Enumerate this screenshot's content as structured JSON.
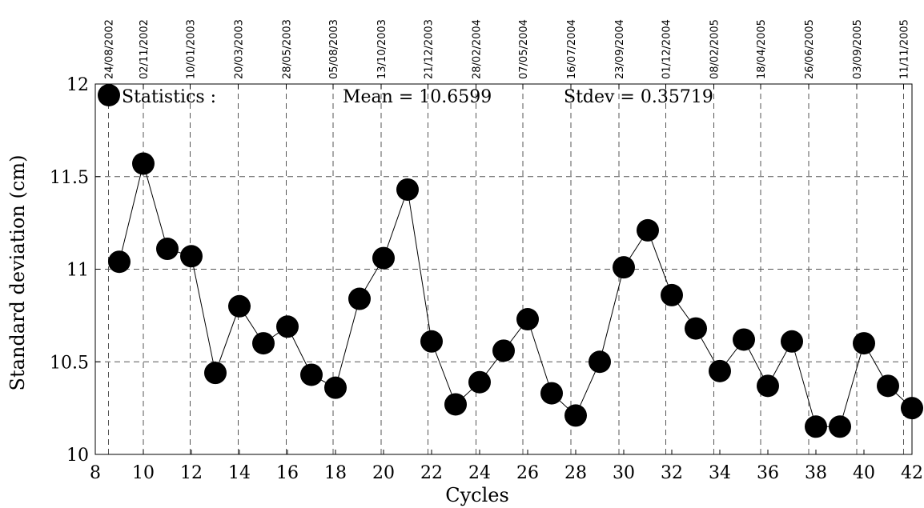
{
  "chart_data": {
    "type": "scatter",
    "xlabel": "Cycles",
    "ylabel": "Standard deviation (cm)",
    "xlim": [
      8,
      42
    ],
    "ylim": [
      10,
      12
    ],
    "x_ticks": [
      "8",
      "10",
      "12",
      "14",
      "16",
      "18",
      "20",
      "22",
      "24",
      "26",
      "28",
      "30",
      "32",
      "34",
      "36",
      "38",
      "40",
      "42"
    ],
    "y_ticks": [
      "10",
      "10.5",
      "11",
      "11.5",
      "12"
    ],
    "top_dates": [
      {
        "x": 8.55,
        "label": "24/08/2002"
      },
      {
        "x": 10.0,
        "label": "02/11/2002"
      },
      {
        "x": 11.95,
        "label": "10/01/2003"
      },
      {
        "x": 13.95,
        "label": "20/03/2003"
      },
      {
        "x": 15.95,
        "label": "28/05/2003"
      },
      {
        "x": 17.9,
        "label": "05/08/2003"
      },
      {
        "x": 19.9,
        "label": "13/10/2003"
      },
      {
        "x": 21.85,
        "label": "21/12/2003"
      },
      {
        "x": 23.85,
        "label": "28/02/2004"
      },
      {
        "x": 25.8,
        "label": "07/05/2004"
      },
      {
        "x": 27.8,
        "label": "16/07/2004"
      },
      {
        "x": 29.8,
        "label": "23/09/2004"
      },
      {
        "x": 31.75,
        "label": "01/12/2004"
      },
      {
        "x": 33.75,
        "label": "08/02/2005"
      },
      {
        "x": 35.7,
        "label": "18/04/2005"
      },
      {
        "x": 37.7,
        "label": "26/06/2005"
      },
      {
        "x": 39.7,
        "label": "03/09/2005"
      },
      {
        "x": 41.65,
        "label": "11/11/2005"
      }
    ],
    "grid": true,
    "line_style": "thin connecting line with large filled circle markers",
    "series": [
      {
        "x": [
          9,
          10,
          11,
          12,
          13,
          14,
          15,
          16,
          17,
          18,
          19,
          20,
          21,
          22,
          23,
          24,
          25,
          26,
          27,
          28,
          29,
          30,
          31,
          32,
          33,
          34,
          35,
          36,
          37,
          38,
          39,
          40,
          41,
          42
        ],
        "y": [
          11.04,
          11.57,
          11.11,
          11.07,
          10.44,
          10.8,
          10.6,
          10.69,
          10.43,
          10.36,
          10.84,
          11.06,
          11.43,
          10.61,
          10.27,
          10.39,
          10.56,
          10.73,
          10.33,
          10.21,
          10.5,
          11.01,
          11.21,
          10.86,
          10.68,
          10.45,
          10.62,
          10.37,
          10.61,
          10.15,
          10.15,
          10.6,
          10.37,
          10.25
        ]
      }
    ],
    "annotations": {
      "statistics": "Statistics :",
      "mean": "Mean = 10.6599",
      "stdev": "Stdev = 0.35719"
    }
  }
}
